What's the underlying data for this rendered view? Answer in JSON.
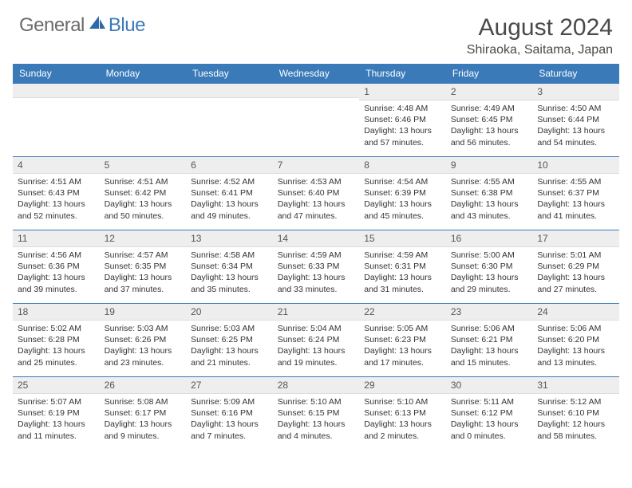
{
  "brand": {
    "general": "General",
    "blue": "Blue"
  },
  "title": "August 2024",
  "location": "Shiraoka, Saitama, Japan",
  "colors": {
    "header_bg": "#3a7ab8",
    "header_text": "#ffffff",
    "daynum_bg": "#eeeeee",
    "border": "#3a7ab8",
    "logo_gray": "#6b6b6b",
    "logo_blue": "#3a7ab8"
  },
  "weekdays": [
    "Sunday",
    "Monday",
    "Tuesday",
    "Wednesday",
    "Thursday",
    "Friday",
    "Saturday"
  ],
  "weeks": [
    [
      {
        "n": "",
        "sr": "",
        "ss": "",
        "dl": ""
      },
      {
        "n": "",
        "sr": "",
        "ss": "",
        "dl": ""
      },
      {
        "n": "",
        "sr": "",
        "ss": "",
        "dl": ""
      },
      {
        "n": "",
        "sr": "",
        "ss": "",
        "dl": ""
      },
      {
        "n": "1",
        "sr": "Sunrise: 4:48 AM",
        "ss": "Sunset: 6:46 PM",
        "dl": "Daylight: 13 hours and 57 minutes."
      },
      {
        "n": "2",
        "sr": "Sunrise: 4:49 AM",
        "ss": "Sunset: 6:45 PM",
        "dl": "Daylight: 13 hours and 56 minutes."
      },
      {
        "n": "3",
        "sr": "Sunrise: 4:50 AM",
        "ss": "Sunset: 6:44 PM",
        "dl": "Daylight: 13 hours and 54 minutes."
      }
    ],
    [
      {
        "n": "4",
        "sr": "Sunrise: 4:51 AM",
        "ss": "Sunset: 6:43 PM",
        "dl": "Daylight: 13 hours and 52 minutes."
      },
      {
        "n": "5",
        "sr": "Sunrise: 4:51 AM",
        "ss": "Sunset: 6:42 PM",
        "dl": "Daylight: 13 hours and 50 minutes."
      },
      {
        "n": "6",
        "sr": "Sunrise: 4:52 AM",
        "ss": "Sunset: 6:41 PM",
        "dl": "Daylight: 13 hours and 49 minutes."
      },
      {
        "n": "7",
        "sr": "Sunrise: 4:53 AM",
        "ss": "Sunset: 6:40 PM",
        "dl": "Daylight: 13 hours and 47 minutes."
      },
      {
        "n": "8",
        "sr": "Sunrise: 4:54 AM",
        "ss": "Sunset: 6:39 PM",
        "dl": "Daylight: 13 hours and 45 minutes."
      },
      {
        "n": "9",
        "sr": "Sunrise: 4:55 AM",
        "ss": "Sunset: 6:38 PM",
        "dl": "Daylight: 13 hours and 43 minutes."
      },
      {
        "n": "10",
        "sr": "Sunrise: 4:55 AM",
        "ss": "Sunset: 6:37 PM",
        "dl": "Daylight: 13 hours and 41 minutes."
      }
    ],
    [
      {
        "n": "11",
        "sr": "Sunrise: 4:56 AM",
        "ss": "Sunset: 6:36 PM",
        "dl": "Daylight: 13 hours and 39 minutes."
      },
      {
        "n": "12",
        "sr": "Sunrise: 4:57 AM",
        "ss": "Sunset: 6:35 PM",
        "dl": "Daylight: 13 hours and 37 minutes."
      },
      {
        "n": "13",
        "sr": "Sunrise: 4:58 AM",
        "ss": "Sunset: 6:34 PM",
        "dl": "Daylight: 13 hours and 35 minutes."
      },
      {
        "n": "14",
        "sr": "Sunrise: 4:59 AM",
        "ss": "Sunset: 6:33 PM",
        "dl": "Daylight: 13 hours and 33 minutes."
      },
      {
        "n": "15",
        "sr": "Sunrise: 4:59 AM",
        "ss": "Sunset: 6:31 PM",
        "dl": "Daylight: 13 hours and 31 minutes."
      },
      {
        "n": "16",
        "sr": "Sunrise: 5:00 AM",
        "ss": "Sunset: 6:30 PM",
        "dl": "Daylight: 13 hours and 29 minutes."
      },
      {
        "n": "17",
        "sr": "Sunrise: 5:01 AM",
        "ss": "Sunset: 6:29 PM",
        "dl": "Daylight: 13 hours and 27 minutes."
      }
    ],
    [
      {
        "n": "18",
        "sr": "Sunrise: 5:02 AM",
        "ss": "Sunset: 6:28 PM",
        "dl": "Daylight: 13 hours and 25 minutes."
      },
      {
        "n": "19",
        "sr": "Sunrise: 5:03 AM",
        "ss": "Sunset: 6:26 PM",
        "dl": "Daylight: 13 hours and 23 minutes."
      },
      {
        "n": "20",
        "sr": "Sunrise: 5:03 AM",
        "ss": "Sunset: 6:25 PM",
        "dl": "Daylight: 13 hours and 21 minutes."
      },
      {
        "n": "21",
        "sr": "Sunrise: 5:04 AM",
        "ss": "Sunset: 6:24 PM",
        "dl": "Daylight: 13 hours and 19 minutes."
      },
      {
        "n": "22",
        "sr": "Sunrise: 5:05 AM",
        "ss": "Sunset: 6:23 PM",
        "dl": "Daylight: 13 hours and 17 minutes."
      },
      {
        "n": "23",
        "sr": "Sunrise: 5:06 AM",
        "ss": "Sunset: 6:21 PM",
        "dl": "Daylight: 13 hours and 15 minutes."
      },
      {
        "n": "24",
        "sr": "Sunrise: 5:06 AM",
        "ss": "Sunset: 6:20 PM",
        "dl": "Daylight: 13 hours and 13 minutes."
      }
    ],
    [
      {
        "n": "25",
        "sr": "Sunrise: 5:07 AM",
        "ss": "Sunset: 6:19 PM",
        "dl": "Daylight: 13 hours and 11 minutes."
      },
      {
        "n": "26",
        "sr": "Sunrise: 5:08 AM",
        "ss": "Sunset: 6:17 PM",
        "dl": "Daylight: 13 hours and 9 minutes."
      },
      {
        "n": "27",
        "sr": "Sunrise: 5:09 AM",
        "ss": "Sunset: 6:16 PM",
        "dl": "Daylight: 13 hours and 7 minutes."
      },
      {
        "n": "28",
        "sr": "Sunrise: 5:10 AM",
        "ss": "Sunset: 6:15 PM",
        "dl": "Daylight: 13 hours and 4 minutes."
      },
      {
        "n": "29",
        "sr": "Sunrise: 5:10 AM",
        "ss": "Sunset: 6:13 PM",
        "dl": "Daylight: 13 hours and 2 minutes."
      },
      {
        "n": "30",
        "sr": "Sunrise: 5:11 AM",
        "ss": "Sunset: 6:12 PM",
        "dl": "Daylight: 13 hours and 0 minutes."
      },
      {
        "n": "31",
        "sr": "Sunrise: 5:12 AM",
        "ss": "Sunset: 6:10 PM",
        "dl": "Daylight: 12 hours and 58 minutes."
      }
    ]
  ]
}
